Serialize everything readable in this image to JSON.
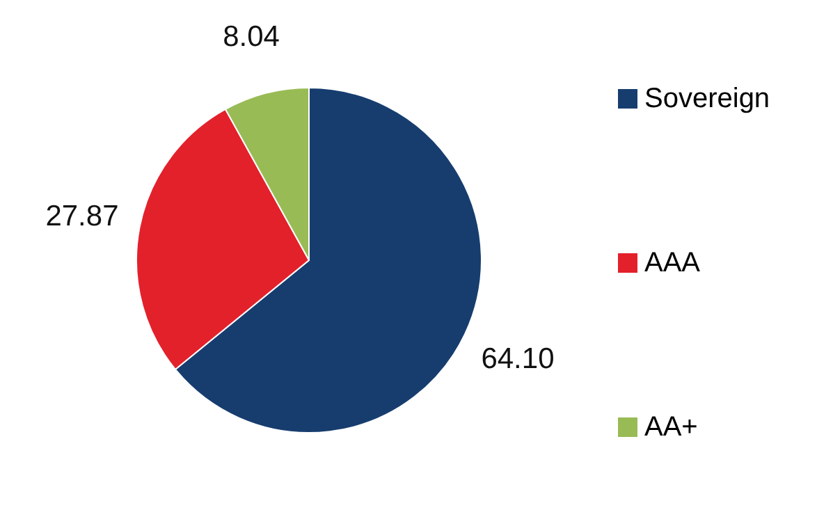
{
  "chart_data": {
    "type": "pie",
    "categories": [
      "Sovereign",
      "AAA",
      "AA+"
    ],
    "values": [
      64.1,
      27.87,
      8.04
    ],
    "value_labels": [
      "64.10",
      "27.87",
      "8.04"
    ],
    "colors": [
      "#173d6f",
      "#e3212b",
      "#99bb55"
    ],
    "legend": "right"
  }
}
